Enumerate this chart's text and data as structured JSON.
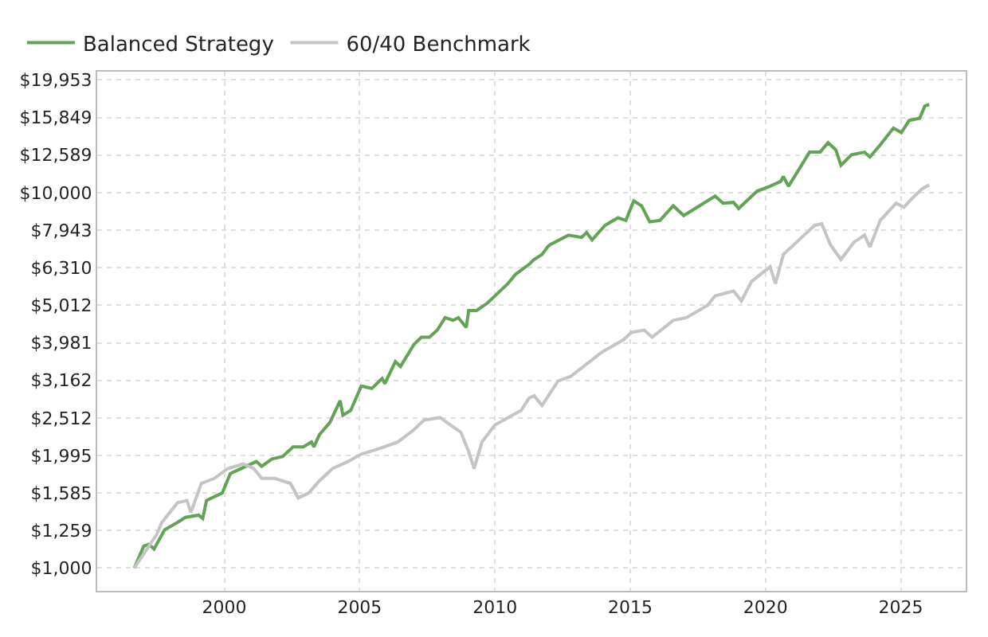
{
  "chart_data": {
    "type": "line",
    "log": "y",
    "grid": true,
    "legend": "top left",
    "marker": "none",
    "line_style": "solid",
    "xlim": [
      1995.3,
      2027.4
    ],
    "xticks": [
      2000,
      2005,
      2010,
      2015,
      2020,
      2025
    ],
    "ylim": [
      870,
      21000
    ],
    "yticks": [
      {
        "value": 1000,
        "label": "$1,000"
      },
      {
        "value": 1259,
        "label": "$1,259"
      },
      {
        "value": 1585,
        "label": "$1,585"
      },
      {
        "value": 1995,
        "label": "$1,995"
      },
      {
        "value": 2512,
        "label": "$2,512"
      },
      {
        "value": 3162,
        "label": "$3,162"
      },
      {
        "value": 3981,
        "label": "$3,981"
      },
      {
        "value": 5012,
        "label": "$5,012"
      },
      {
        "value": 6310,
        "label": "$6,310"
      },
      {
        "value": 7943,
        "label": "$7,943"
      },
      {
        "value": 10000,
        "label": "$10,000"
      },
      {
        "value": 12589,
        "label": "$12,589"
      },
      {
        "value": 15849,
        "label": "$15,849"
      },
      {
        "value": 19953,
        "label": "$19,953"
      }
    ],
    "series": [
      {
        "name": "Balanced Strategy",
        "color": "#62a356",
        "x": [
          1996.67,
          1997.02,
          1997.21,
          1997.4,
          1997.79,
          1998.27,
          1998.56,
          1999.05,
          1999.2,
          1999.34,
          1999.92,
          2000.22,
          2000.8,
          2001.18,
          2001.38,
          2001.76,
          2002.15,
          2002.54,
          2002.92,
          2003.22,
          2003.31,
          2003.51,
          2003.9,
          2004.28,
          2004.38,
          2004.67,
          2005.06,
          2005.45,
          2005.83,
          2005.93,
          2006.32,
          2006.51,
          2007.0,
          2007.28,
          2007.58,
          2007.87,
          2008.16,
          2008.45,
          2008.65,
          2008.94,
          2009.03,
          2009.32,
          2009.71,
          2010.0,
          2010.48,
          2010.77,
          2011.26,
          2011.45,
          2011.74,
          2011.94,
          2012.03,
          2012.72,
          2013.2,
          2013.39,
          2013.59,
          2014.07,
          2014.55,
          2014.84,
          2015.13,
          2015.42,
          2015.72,
          2016.1,
          2016.59,
          2016.98,
          2017.56,
          2018.14,
          2018.43,
          2018.82,
          2019.01,
          2019.69,
          2020.17,
          2020.56,
          2020.66,
          2020.85,
          2021.24,
          2021.63,
          2022.02,
          2022.31,
          2022.6,
          2022.79,
          2023.18,
          2023.66,
          2023.86,
          2024.24,
          2024.73,
          2025.02,
          2025.31,
          2025.7,
          2025.89,
          2026.05
        ],
        "values": [
          1000,
          1144,
          1157,
          1124,
          1265,
          1324,
          1365,
          1384,
          1356,
          1514,
          1585,
          1786,
          1867,
          1923,
          1867,
          1953,
          1982,
          2103,
          2103,
          2167,
          2103,
          2265,
          2443,
          2793,
          2554,
          2630,
          3055,
          3010,
          3199,
          3099,
          3548,
          3443,
          3936,
          4121,
          4121,
          4305,
          4645,
          4571,
          4645,
          4375,
          4853,
          4853,
          5070,
          5309,
          5723,
          6067,
          6442,
          6637,
          6843,
          7161,
          7261,
          7709,
          7601,
          7834,
          7484,
          8185,
          8570,
          8435,
          9506,
          9226,
          8360,
          8435,
          9226,
          8690,
          9226,
          9795,
          9376,
          9420,
          9078,
          10090,
          10400,
          10710,
          11040,
          10400,
          11540,
          12820,
          12820,
          13590,
          13000,
          11830,
          12620,
          12820,
          12440,
          13400,
          14860,
          14450,
          15560,
          15780,
          17010,
          17170
        ]
      },
      {
        "name": "60/40 Benchmark",
        "color": "#c4c4c4",
        "x": [
          1996.67,
          1997.5,
          1997.69,
          1998.27,
          1998.62,
          1998.76,
          1999.15,
          1999.63,
          2000.12,
          2000.7,
          2001.09,
          2001.38,
          2001.86,
          2002.44,
          2002.73,
          2003.12,
          2003.51,
          2004.0,
          2004.58,
          2005.06,
          2005.64,
          2006.41,
          2007.0,
          2007.38,
          2007.97,
          2008.35,
          2008.74,
          2009.03,
          2009.23,
          2009.52,
          2010.0,
          2010.48,
          2010.97,
          2011.26,
          2011.45,
          2011.74,
          2012.33,
          2012.81,
          2013.39,
          2013.97,
          2014.75,
          2015.04,
          2015.52,
          2015.81,
          2016.49,
          2016.59,
          2017.08,
          2017.85,
          2018.14,
          2018.82,
          2019.11,
          2019.49,
          2020.17,
          2020.37,
          2020.66,
          2021.34,
          2021.82,
          2022.08,
          2022.4,
          2022.79,
          2023.27,
          2023.66,
          2023.86,
          2024.24,
          2024.83,
          2025.12,
          2025.41,
          2025.8,
          2026.05
        ],
        "values": [
          1000,
          1229,
          1324,
          1493,
          1514,
          1406,
          1682,
          1734,
          1841,
          1894,
          1841,
          1734,
          1734,
          1682,
          1538,
          1585,
          1707,
          1841,
          1923,
          2012,
          2072,
          2167,
          2335,
          2479,
          2517,
          2406,
          2301,
          2042,
          1841,
          2167,
          2406,
          2517,
          2630,
          2836,
          2877,
          2711,
          3148,
          3243,
          3497,
          3767,
          4055,
          4244,
          4305,
          4121,
          4508,
          4571,
          4645,
          5003,
          5309,
          5470,
          5152,
          5803,
          6353,
          5723,
          6843,
          7601,
          8185,
          8260,
          7261,
          6637,
          7379,
          7709,
          7161,
          8435,
          9376,
          9141,
          9640,
          10250,
          10490
        ]
      }
    ]
  }
}
